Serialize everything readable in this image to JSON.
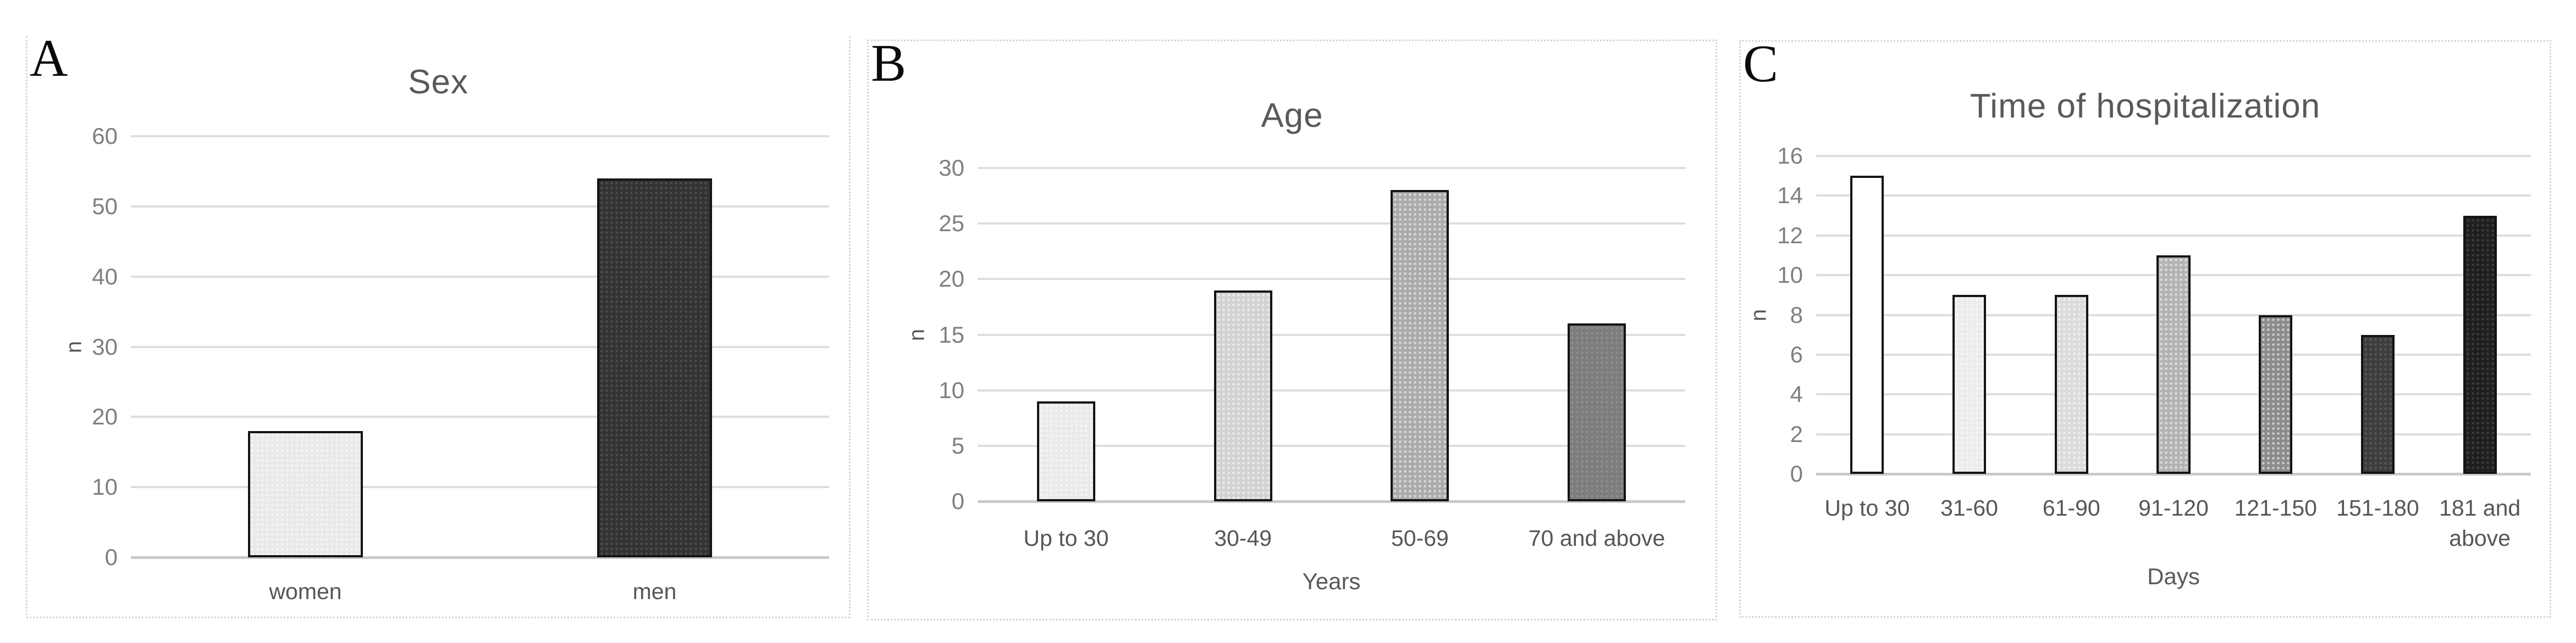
{
  "page": {
    "background": "#ffffff"
  },
  "chart_data": [
    {
      "type": "bar",
      "panel_label": "A",
      "title": "Sex",
      "xlabel": "",
      "ylabel": "n",
      "categories": [
        "women",
        "men"
      ],
      "values": [
        18,
        54
      ],
      "bar_colors": [
        "#e9e9e9",
        "#333333"
      ],
      "bar_border_color": "#141414",
      "ylim": [
        0,
        60
      ],
      "ytick_step": 10,
      "grid": true,
      "legend": false
    },
    {
      "type": "bar",
      "panel_label": "B",
      "title": "Age",
      "xlabel": "Years",
      "ylabel": "n",
      "categories": [
        "Up to 30",
        "30-49",
        "50-69",
        "70 and above"
      ],
      "values": [
        9,
        19,
        28,
        16
      ],
      "bar_colors": [
        "#eaeaea",
        "#d2d2d2",
        "#ababab",
        "#7d7d7d"
      ],
      "bar_border_color": "#141414",
      "ylim": [
        0,
        30
      ],
      "ytick_step": 5,
      "grid": true,
      "legend": false
    },
    {
      "type": "bar",
      "panel_label": "C",
      "title": "Time of hospitalization",
      "xlabel": "Days",
      "ylabel": "n",
      "categories": [
        "Up to 30",
        "31-60",
        "61-90",
        "91-120",
        "121-150",
        "151-180",
        "181 and above"
      ],
      "values": [
        15,
        9,
        9,
        11,
        8,
        7,
        13
      ],
      "bar_colors": [
        "#ffffff",
        "#ececec",
        "#dbdbdb",
        "#b3b3b3",
        "#8c8c8c",
        "#3d3d3d",
        "#1f1f1f"
      ],
      "bar_border_color": "#141414",
      "ylim": [
        0,
        16
      ],
      "ytick_step": 2,
      "grid": true,
      "legend": false
    }
  ]
}
